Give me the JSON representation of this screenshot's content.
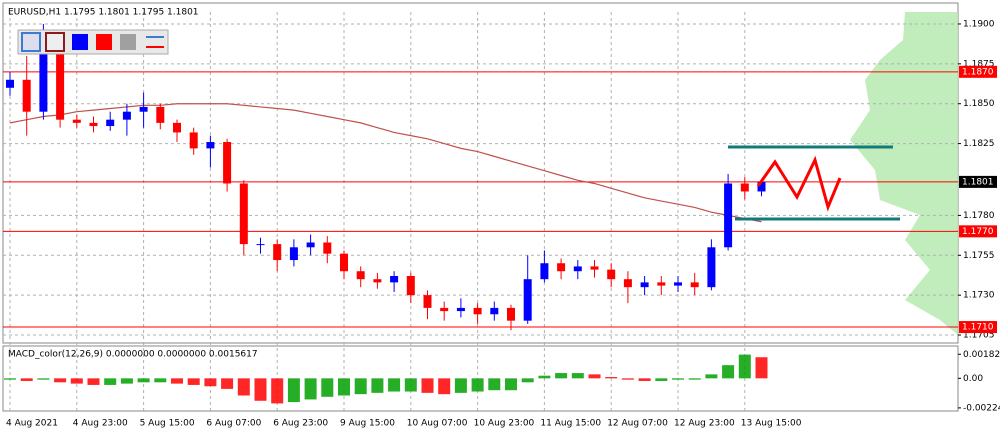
{
  "chart_data": [
    {
      "type": "candlestick",
      "title": "EURUSD,H1  1.1795 1.1801 1.1795 1.1801",
      "categories": [
        "4 Aug 2021",
        null,
        null,
        null,
        "4 Aug 23:00",
        null,
        null,
        null,
        "5 Aug 15:00",
        null,
        null,
        null,
        "6 Aug 07:00",
        null,
        null,
        null,
        "6 Aug 23:00",
        null,
        null,
        null,
        "9 Aug 15:00",
        null,
        null,
        null,
        "10 Aug 07:00",
        null,
        null,
        null,
        "10 Aug 23:00",
        null,
        null,
        null,
        "11 Aug 15:00",
        null,
        null,
        null,
        "12 Aug 07:00",
        null,
        null,
        null,
        "12 Aug 23:00",
        null,
        null,
        null,
        "13 Aug 15:00",
        null
      ],
      "open": [
        1.186,
        1.1865,
        1.1845,
        1.189,
        1.184,
        1.1838,
        1.1836,
        1.184,
        1.1845,
        1.1848,
        1.1838,
        1.1832,
        1.1822,
        1.1826,
        1.18,
        1.1762,
        1.1762,
        1.1752,
        1.176,
        1.1763,
        1.1756,
        1.1745,
        1.174,
        1.1738,
        1.1742,
        1.173,
        1.1722,
        1.172,
        1.1722,
        1.1718,
        1.1722,
        1.1714,
        1.174,
        1.175,
        1.1745,
        1.1748,
        1.1746,
        1.174,
        1.1735,
        1.1738,
        1.1736,
        1.1738,
        1.1735,
        1.176,
        1.18,
        1.1795
      ],
      "high": [
        1.187,
        1.188,
        1.19,
        1.1895,
        1.1843,
        1.1842,
        1.1845,
        1.185,
        1.1857,
        1.185,
        1.184,
        1.1835,
        1.183,
        1.1828,
        1.1802,
        1.1766,
        1.1765,
        1.1765,
        1.1768,
        1.1767,
        1.1758,
        1.1748,
        1.1744,
        1.1745,
        1.1744,
        1.1733,
        1.1726,
        1.1728,
        1.1725,
        1.1726,
        1.1724,
        1.1755,
        1.1758,
        1.1753,
        1.1752,
        1.1752,
        1.175,
        1.1745,
        1.1742,
        1.1742,
        1.1742,
        1.1744,
        1.1765,
        1.1806,
        1.1804,
        1.1803
      ],
      "low": [
        1.1855,
        1.183,
        1.184,
        1.1835,
        1.1835,
        1.1832,
        1.1833,
        1.183,
        1.1835,
        1.1834,
        1.1826,
        1.1818,
        1.181,
        1.1795,
        1.1755,
        1.1756,
        1.1745,
        1.1748,
        1.1755,
        1.175,
        1.174,
        1.1735,
        1.1734,
        1.1732,
        1.1725,
        1.1715,
        1.1714,
        1.1716,
        1.1712,
        1.1714,
        1.1708,
        1.1712,
        1.1738,
        1.174,
        1.174,
        1.1741,
        1.1735,
        1.1725,
        1.173,
        1.173,
        1.1732,
        1.173,
        1.1733,
        1.1758,
        1.179,
        1.1792
      ],
      "close": [
        1.1865,
        1.1845,
        1.189,
        1.184,
        1.1838,
        1.1836,
        1.184,
        1.1845,
        1.1848,
        1.1838,
        1.1832,
        1.1822,
        1.1826,
        1.18,
        1.1762,
        1.1762,
        1.1752,
        1.176,
        1.1763,
        1.1756,
        1.1745,
        1.174,
        1.1738,
        1.1742,
        1.173,
        1.1722,
        1.172,
        1.1722,
        1.1718,
        1.1722,
        1.1714,
        1.174,
        1.175,
        1.1745,
        1.1748,
        1.1746,
        1.174,
        1.1735,
        1.1738,
        1.1736,
        1.1738,
        1.1735,
        1.176,
        1.18,
        1.1795,
        1.1801
      ],
      "up_color": "#0000ff",
      "down_color": "#ff0000",
      "series": [
        {
          "color": "#c0504d",
          "values": [
            1.1838,
            1.184,
            1.1842,
            1.1843,
            1.1845,
            1.1846,
            1.1847,
            1.1848,
            1.1849,
            1.1849,
            1.185,
            1.185,
            1.185,
            1.185,
            1.1849,
            1.1848,
            1.1847,
            1.1846,
            1.1844,
            1.1842,
            1.184,
            1.1838,
            1.1835,
            1.1832,
            1.183,
            1.1828,
            1.1825,
            1.1822,
            1.182,
            1.1817,
            1.1814,
            1.1811,
            1.1808,
            1.1805,
            1.1802,
            1.18,
            1.1797,
            1.1794,
            1.1791,
            1.1789,
            1.1787,
            1.1785,
            1.1782,
            1.178,
            1.1778,
            1.1776
          ]
        }
      ],
      "levels": [
        {
          "value": 1.187,
          "label": "1.1870",
          "color": "#ff0000"
        },
        {
          "value": 1.1801,
          "label": "1.1801",
          "color": "#000000"
        },
        {
          "value": 1.177,
          "label": "1.1770",
          "color": "#ff0000"
        },
        {
          "value": 1.171,
          "label": "1.1710",
          "color": "#ff0000"
        }
      ],
      "ylim": [
        1.17,
        1.19075
      ],
      "yticks": [
        1.1705,
        {
          "value": 1.173,
          "label": "1.1730"
        },
        1.1755,
        {
          "value": 1.178,
          "label": "1.1780"
        },
        1.1825,
        {
          "value": 1.185,
          "label": "1.1850"
        },
        1.1875,
        {
          "value": 1.19,
          "label": "1.1900"
        }
      ],
      "grid": true
    },
    {
      "type": "bar",
      "title": "MACD_color(12,26,9) 0.0000000 0.0000000 0.0015617",
      "values": [
        -0.0001,
        -0.0002,
        -0.0001,
        -0.0003,
        -0.0004,
        -0.0005,
        -0.0005,
        -0.0004,
        -0.0003,
        -0.0003,
        -0.0004,
        -0.0005,
        -0.0006,
        -0.0008,
        -0.0013,
        -0.0017,
        -0.0019,
        -0.0018,
        -0.0016,
        -0.0014,
        -0.0013,
        -0.0012,
        -0.0011,
        -0.001,
        -0.001,
        -0.0011,
        -0.0012,
        -0.0011,
        -0.001,
        -0.0009,
        -0.0009,
        -0.0003,
        0.0002,
        0.0004,
        0.0004,
        0.0003,
        0.0001,
        -0.0001,
        -0.0002,
        -0.0002,
        -0.0001,
        -0.0001,
        0.0003,
        0.001,
        0.0018,
        0.0016
      ],
      "up_color": "#00a000",
      "down_color": "#ff0000",
      "ylim": [
        -0.0024,
        0.0023
      ],
      "yticks": [
        0.001825,
        {
          "value": 0,
          "label": "0.00"
        },
        -0.00224
      ]
    }
  ]
}
